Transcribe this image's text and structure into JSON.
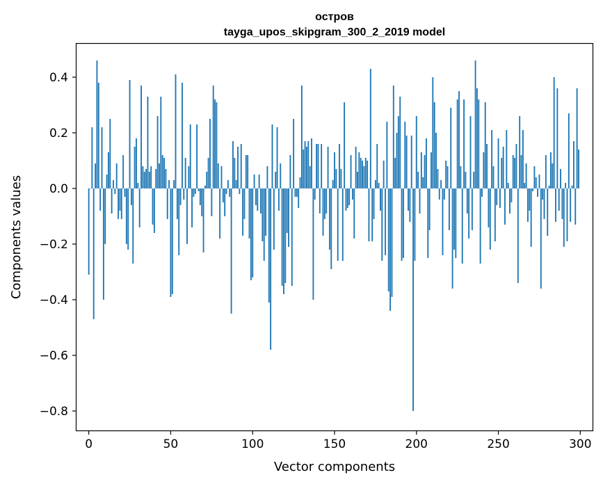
{
  "chart_data": {
    "type": "bar",
    "title": "остров",
    "subtitle": "tayga_upos_skipgram_300_2_2019 model",
    "xlabel": "Vector components",
    "ylabel": "Components values",
    "xlim": [
      -7.5,
      307.5
    ],
    "ylim": [
      -0.87,
      0.52
    ],
    "xticks": [
      0,
      50,
      100,
      150,
      200,
      250,
      300
    ],
    "xtick_labels": [
      "0",
      "50",
      "100",
      "150",
      "200",
      "250",
      "300"
    ],
    "yticks": [
      -0.8,
      -0.6,
      -0.4,
      -0.2,
      0.0,
      0.2,
      0.4
    ],
    "ytick_labels": [
      "−0.8",
      "−0.6",
      "−0.4",
      "−0.2",
      "0.0",
      "0.2",
      "0.4"
    ],
    "bar_color": "#1f77b4",
    "grid": false,
    "categories_note": "component index 0-299",
    "values": [
      -0.31,
      0.0,
      0.22,
      -0.47,
      0.09,
      0.46,
      0.38,
      -0.08,
      0.22,
      -0.4,
      -0.2,
      0.05,
      0.13,
      0.25,
      -0.09,
      0.03,
      -0.02,
      0.09,
      -0.11,
      -0.08,
      -0.11,
      0.12,
      -0.03,
      -0.2,
      -0.22,
      0.39,
      -0.06,
      -0.27,
      0.15,
      0.18,
      0.02,
      -0.14,
      0.37,
      0.08,
      0.06,
      0.07,
      0.33,
      0.06,
      0.08,
      -0.13,
      -0.16,
      0.07,
      0.26,
      0.09,
      0.33,
      0.12,
      0.11,
      0.07,
      -0.11,
      0.03,
      -0.39,
      -0.38,
      0.03,
      0.41,
      -0.11,
      -0.24,
      -0.06,
      0.38,
      -0.04,
      0.11,
      -0.2,
      0.08,
      0.23,
      -0.14,
      -0.03,
      -0.02,
      0.23,
      -0.01,
      -0.06,
      -0.1,
      -0.23,
      0.01,
      0.06,
      0.11,
      0.25,
      -0.1,
      0.37,
      0.32,
      0.31,
      0.09,
      -0.18,
      0.08,
      -0.05,
      -0.1,
      -0.02,
      0.03,
      -0.03,
      -0.45,
      0.17,
      0.11,
      0.03,
      0.15,
      -0.02,
      0.16,
      -0.17,
      -0.11,
      0.12,
      0.12,
      -0.18,
      -0.33,
      -0.32,
      0.05,
      -0.06,
      -0.08,
      0.05,
      -0.09,
      -0.19,
      -0.26,
      -0.17,
      0.08,
      -0.41,
      -0.58,
      0.23,
      -0.22,
      0.06,
      0.22,
      -0.08,
      0.09,
      -0.35,
      -0.38,
      -0.34,
      -0.16,
      -0.21,
      0.12,
      -0.35,
      0.25,
      -0.03,
      -0.03,
      -0.07,
      0.04,
      0.37,
      0.14,
      0.17,
      0.15,
      0.17,
      0.08,
      0.18,
      -0.4,
      -0.04,
      0.16,
      0.16,
      -0.09,
      0.16,
      -0.17,
      -0.11,
      -0.09,
      0.15,
      -0.22,
      -0.29,
      0.03,
      0.13,
      0.07,
      -0.26,
      0.16,
      0.07,
      -0.26,
      0.31,
      -0.08,
      -0.07,
      -0.06,
      0.12,
      -0.04,
      -0.18,
      0.15,
      0.06,
      0.13,
      0.11,
      0.1,
      0.08,
      0.11,
      0.1,
      -0.19,
      0.43,
      -0.19,
      -0.11,
      0.03,
      0.16,
      0.02,
      -0.08,
      -0.26,
      0.1,
      -0.24,
      0.24,
      -0.37,
      -0.44,
      -0.39,
      0.37,
      0.11,
      0.2,
      0.26,
      0.33,
      -0.26,
      -0.25,
      0.24,
      0.19,
      -0.08,
      -0.12,
      0.19,
      -0.8,
      -0.26,
      0.26,
      0.06,
      -0.09,
      0.13,
      0.04,
      0.12,
      0.18,
      -0.25,
      -0.15,
      0.13,
      0.4,
      0.31,
      0.2,
      0.07,
      -0.04,
      0.03,
      -0.24,
      -0.04,
      0.1,
      0.08,
      -0.15,
      0.29,
      -0.36,
      -0.22,
      -0.25,
      0.32,
      0.35,
      0.08,
      -0.27,
      0.32,
      0.06,
      -0.09,
      -0.18,
      0.26,
      -0.15,
      0.06,
      0.46,
      0.36,
      0.32,
      -0.27,
      -0.03,
      0.13,
      0.31,
      0.16,
      -0.14,
      -0.22,
      0.21,
      0.08,
      -0.19,
      -0.06,
      0.18,
      -0.07,
      0.11,
      0.15,
      -0.13,
      0.21,
      0.02,
      -0.09,
      -0.05,
      0.12,
      0.11,
      0.16,
      -0.34,
      0.26,
      0.12,
      0.21,
      0.02,
      0.09,
      -0.12,
      -0.08,
      -0.21,
      -0.01,
      0.08,
      0.04,
      -0.03,
      0.05,
      -0.36,
      -0.04,
      -0.11,
      0.12,
      -0.17,
      0.01,
      0.13,
      0.09,
      0.4,
      -0.12,
      0.36,
      -0.08,
      0.07,
      -0.11,
      -0.21,
      0.02,
      -0.19,
      0.27,
      -0.12,
      0.01,
      0.17,
      -0.13,
      0.36,
      0.14
    ]
  }
}
